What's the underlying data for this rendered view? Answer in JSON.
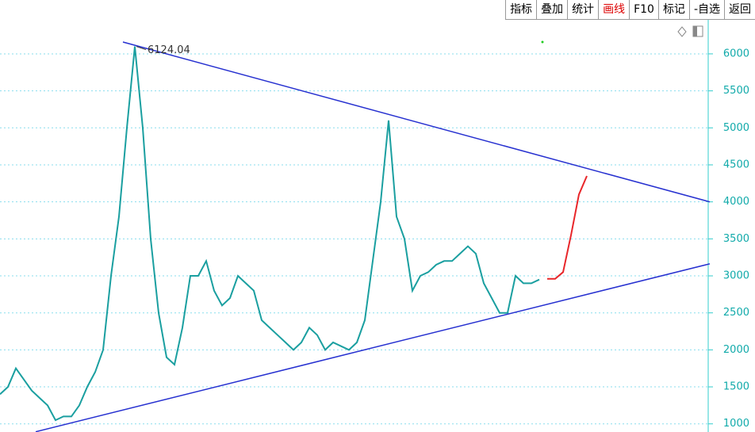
{
  "toolbar": [
    "指标",
    "叠加",
    "统计",
    "画线",
    "F10",
    "标记",
    "-自选",
    "返回"
  ],
  "chart_data": {
    "type": "line",
    "annotation": "6124.04",
    "xlim": [
      0,
      89.5
    ],
    "ylim": [
      890,
      6460
    ],
    "yticks": [
      1000,
      1500,
      2000,
      2500,
      3000,
      3500,
      4000,
      4500,
      5000,
      5500,
      6000
    ],
    "grid": true,
    "series": [
      {
        "color": "#1a9fa0",
        "values": [
          1400,
          1500,
          1750,
          1600,
          1450,
          1350,
          1250,
          1050,
          1100,
          1100,
          1250,
          1500,
          1700,
          2000,
          3000,
          3800,
          5000,
          6100,
          5000,
          3500,
          2500,
          1900,
          1800,
          2300,
          3000,
          3000,
          3200,
          2800,
          2600,
          2700,
          3000,
          2900,
          2800,
          2400,
          2300,
          2200,
          2100,
          2000,
          2100,
          2300,
          2200,
          2000,
          2100,
          2050,
          2000,
          2100,
          2400,
          3200,
          4000,
          5100,
          3800,
          3500,
          2800,
          3000,
          3050,
          3150,
          3200,
          3200,
          3300,
          3400,
          3300,
          2900,
          2700,
          2500,
          2500,
          3000,
          2900,
          2900,
          2950
        ]
      },
      {
        "color": "#e8262a",
        "x": [
          69,
          70,
          71,
          72,
          73,
          74
        ],
        "values": [
          2960,
          2960,
          3050,
          3550,
          4100,
          4350
        ]
      },
      {
        "color": "#2630d0",
        "x": [
          15.5,
          89.5
        ],
        "values": [
          6160,
          4000
        ]
      },
      {
        "color": "#2630d0",
        "x": [
          4.5,
          89.5
        ],
        "values": [
          893,
          3163
        ]
      }
    ]
  }
}
